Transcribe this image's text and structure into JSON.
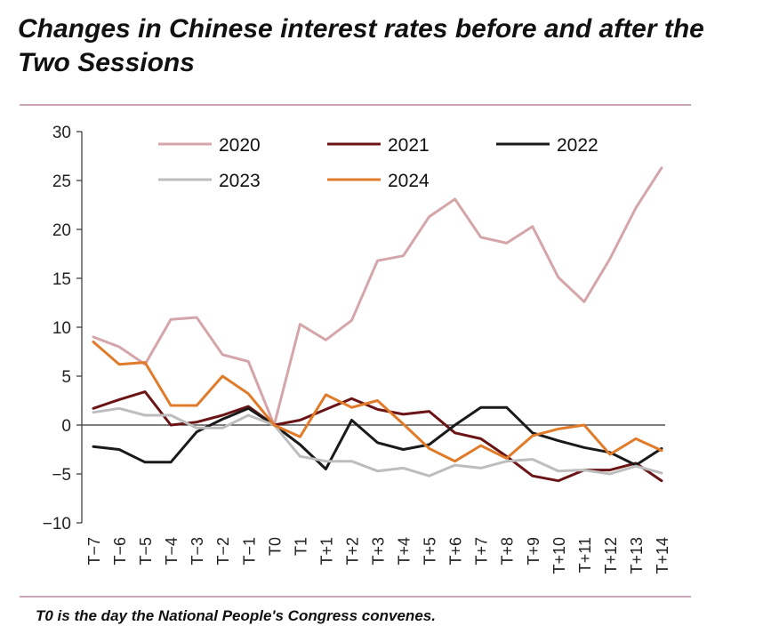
{
  "title": "Changes in Chinese interest rates before and after the Two Sessions",
  "footnote": "T0 is the day the National People's Congress convenes.",
  "chart_data": {
    "type": "line",
    "title": "Changes in Chinese interest rates before and after the Two Sessions",
    "xlabel": "",
    "ylabel": "",
    "ylim": [
      -10,
      30
    ],
    "yticks": [
      30,
      25,
      20,
      15,
      10,
      5,
      0,
      -5,
      -10
    ],
    "yticklabels": [
      "30",
      "25",
      "20",
      "15",
      "10",
      "5",
      "0",
      "−5",
      "−10"
    ],
    "categories": [
      "T−7",
      "T−6",
      "T−5",
      "T−4",
      "T−3",
      "T−2",
      "T−1",
      "T0",
      "T1",
      "T+1",
      "T+2",
      "T+3",
      "T+4",
      "T+5",
      "T+6",
      "T+7",
      "T+8",
      "T+9",
      "T+10",
      "T+11",
      "T+12",
      "T+13",
      "T+14"
    ],
    "legend_position": "top",
    "series": [
      {
        "name": "2020",
        "color": "#d4a5a9",
        "values": [
          9.0,
          8.0,
          6.2,
          10.8,
          11.0,
          7.2,
          6.5,
          0.0,
          10.3,
          8.7,
          10.7,
          16.8,
          17.3,
          21.3,
          23.1,
          19.2,
          18.6,
          20.3,
          15.1,
          12.6,
          17.0,
          22.2,
          26.3
        ]
      },
      {
        "name": "2021",
        "color": "#6b1416",
        "values": [
          1.7,
          2.6,
          3.4,
          0.0,
          0.3,
          1.0,
          1.9,
          0.0,
          0.5,
          1.6,
          2.7,
          1.6,
          1.1,
          1.4,
          -0.8,
          -1.4,
          -3.2,
          -5.2,
          -5.7,
          -4.6,
          -4.6,
          -3.9,
          -5.7
        ]
      },
      {
        "name": "2022",
        "color": "#1a1a1a",
        "values": [
          -2.2,
          -2.5,
          -3.8,
          -3.8,
          -0.7,
          0.6,
          1.7,
          0.0,
          -2.0,
          -4.5,
          0.5,
          -1.8,
          -2.5,
          -2.0,
          0.0,
          1.8,
          1.8,
          -0.8,
          -1.6,
          -2.3,
          -2.8,
          -4.1,
          -2.4
        ]
      },
      {
        "name": "2023",
        "color": "#bdbdbd",
        "values": [
          1.3,
          1.7,
          1.0,
          1.0,
          -0.3,
          -0.3,
          1.0,
          0.0,
          -3.2,
          -3.7,
          -3.7,
          -4.7,
          -4.4,
          -5.2,
          -4.1,
          -4.4,
          -3.7,
          -3.5,
          -4.7,
          -4.6,
          -5.0,
          -4.2,
          -4.9
        ]
      },
      {
        "name": "2024",
        "color": "#e07b2a",
        "values": [
          8.5,
          6.2,
          6.4,
          2.0,
          2.0,
          5.0,
          3.2,
          0.0,
          -1.2,
          3.1,
          1.8,
          2.5,
          0.1,
          -2.4,
          -3.7,
          -2.1,
          -3.4,
          -1.1,
          -0.4,
          0.0,
          -3.0,
          -1.4,
          -2.6
        ]
      }
    ]
  }
}
